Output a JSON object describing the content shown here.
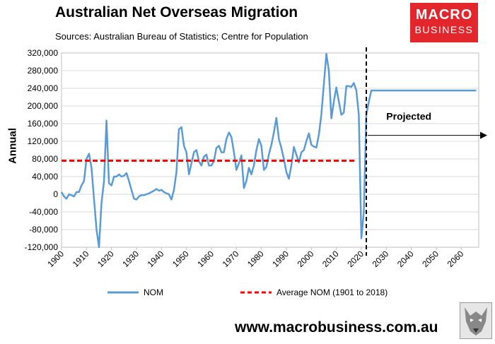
{
  "header": {
    "title": "Australian Net Overseas Migration",
    "subtitle": "Sources: Australian Bureau of Statistics; Centre for Population"
  },
  "logo": {
    "line1": "MACRO",
    "line2": "BUSINESS"
  },
  "footer": {
    "website": "www.macrobusiness.com.au"
  },
  "colors": {
    "nom": "#5b9bd5",
    "average": "#ff0000",
    "logo_bg": "#e3262b"
  },
  "chart_data": {
    "type": "line",
    "title": "Australian Net Overseas Migration",
    "ylabel": "Annual",
    "xlabel": "",
    "xlim": [
      1900,
      2067
    ],
    "ylim": [
      -120000,
      320000
    ],
    "xticks": [
      "1900",
      "1910",
      "1920",
      "1930",
      "1940",
      "1950",
      "1960",
      "1970",
      "1980",
      "1990",
      "2000",
      "2010",
      "2020",
      "2030",
      "2040",
      "2050",
      "2060"
    ],
    "yticks": [
      "-120,000",
      "-80,000",
      "-40,000",
      "0",
      "40,000",
      "80,000",
      "120,000",
      "160,000",
      "200,000",
      "240,000",
      "280,000",
      "320,000"
    ],
    "ytick_values": [
      -120000,
      -80000,
      -40000,
      0,
      40000,
      80000,
      120000,
      160000,
      200000,
      240000,
      280000,
      320000
    ],
    "grid": "horizontal",
    "legend_position": "bottom",
    "series": [
      {
        "name": "NOM",
        "style": "solid",
        "x": [
          1900,
          1901,
          1902,
          1903,
          1904,
          1905,
          1906,
          1907,
          1908,
          1909,
          1910,
          1911,
          1912,
          1913,
          1914,
          1915,
          1916,
          1917,
          1918,
          1919,
          1920,
          1921,
          1922,
          1923,
          1924,
          1925,
          1926,
          1927,
          1928,
          1929,
          1930,
          1931,
          1932,
          1933,
          1934,
          1935,
          1936,
          1937,
          1938,
          1939,
          1940,
          1941,
          1942,
          1943,
          1944,
          1945,
          1946,
          1947,
          1948,
          1949,
          1950,
          1951,
          1952,
          1953,
          1954,
          1955,
          1956,
          1957,
          1958,
          1959,
          1960,
          1961,
          1962,
          1963,
          1964,
          1965,
          1966,
          1967,
          1968,
          1969,
          1970,
          1971,
          1972,
          1973,
          1974,
          1975,
          1976,
          1977,
          1978,
          1979,
          1980,
          1981,
          1982,
          1983,
          1984,
          1985,
          1986,
          1987,
          1988,
          1989,
          1990,
          1991,
          1992,
          1993,
          1994,
          1995,
          1996,
          1997,
          1998,
          1999,
          2000,
          2001,
          2002,
          2003,
          2004,
          2005,
          2006,
          2007,
          2008,
          2009,
          2010,
          2011,
          2012,
          2013,
          2014,
          2015,
          2016,
          2017,
          2018,
          2019,
          2020,
          2021,
          2022,
          2023,
          2024,
          2025,
          2066
        ],
        "values": [
          5000,
          -5000,
          -10000,
          0,
          -2000,
          -5000,
          5000,
          5000,
          20000,
          30000,
          80000,
          92000,
          60000,
          -10000,
          -80000,
          -120000,
          -20000,
          30000,
          167000,
          25000,
          20000,
          40000,
          40000,
          45000,
          40000,
          42000,
          48000,
          30000,
          10000,
          -10000,
          -12000,
          -5000,
          -2000,
          -2000,
          0,
          2000,
          5000,
          8000,
          12000,
          8000,
          10000,
          5000,
          2000,
          0,
          -12000,
          10000,
          50000,
          147000,
          152000,
          110000,
          95000,
          45000,
          70000,
          95000,
          100000,
          75000,
          65000,
          85000,
          90000,
          65000,
          65000,
          75000,
          105000,
          110000,
          95000,
          95000,
          125000,
          140000,
          130000,
          95000,
          55000,
          70000,
          88000,
          14000,
          30000,
          60000,
          45000,
          65000,
          100000,
          125000,
          110000,
          55000,
          62000,
          90000,
          112000,
          140000,
          173000,
          125000,
          105000,
          80000,
          50000,
          35000,
          65000,
          107000,
          90000,
          72000,
          95000,
          100000,
          120000,
          138000,
          112000,
          108000,
          106000,
          135000,
          180000,
          250000,
          318000,
          280000,
          172000,
          210000,
          242000,
          210000,
          180000,
          185000,
          245000,
          245000,
          243000,
          252000,
          235000,
          180000,
          -100000,
          -40000,
          180000,
          210000,
          235000,
          235000,
          235000
        ]
      },
      {
        "name": "Average NOM (1901 to 2018)",
        "style": "dashed",
        "x": [
          1900,
          2018
        ],
        "values": [
          76000,
          76000
        ]
      }
    ],
    "annotations": [
      {
        "text": "Projected",
        "x": 2030,
        "y": 175000
      }
    ],
    "forecast_boundary_x": 2022
  }
}
